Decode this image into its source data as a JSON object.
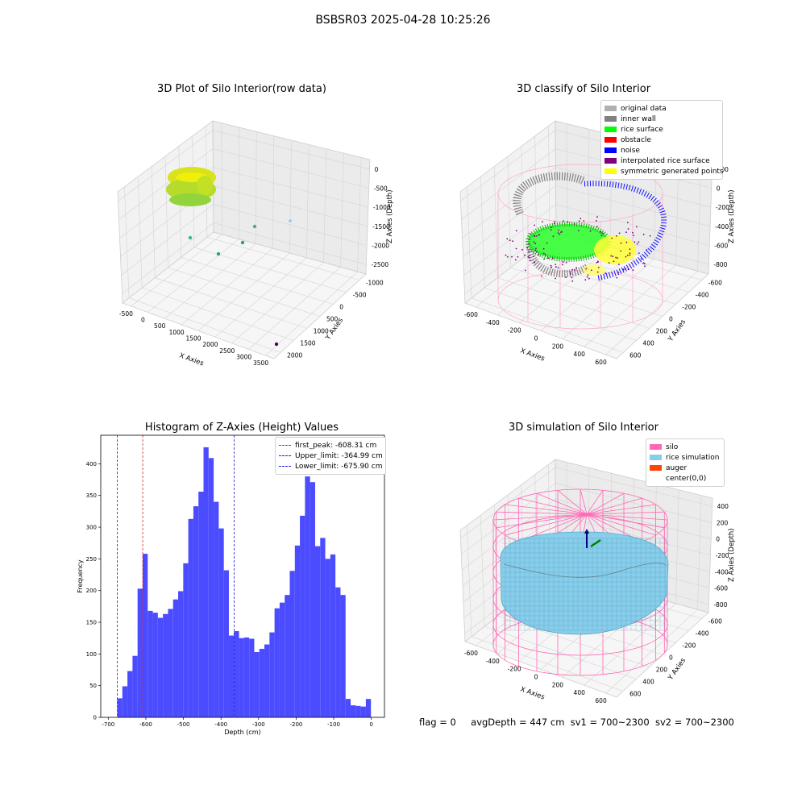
{
  "suptitle": "BSBSR03 2025-04-28 10:25:26",
  "footer": {
    "flag": "flag = 0",
    "avg_depth": "avgDepth = 447 cm",
    "sv1": "sv1 = 700~2300",
    "sv2": "sv2 = 700~2300"
  },
  "colors": {
    "hist_bar": "#4b4bff",
    "first_peak_line": "#d62728",
    "limit_lines": "#1f1fd6",
    "silo": "#ff69b4",
    "rice": "#87ceeb",
    "auger": "#ff4500",
    "rice_surface": "#00ff00",
    "noise": "#0000ff",
    "inner_wall": "#808080",
    "symmetric": "#ffff00",
    "interpolated": "#800080"
  },
  "chart_data": [
    {
      "type": "scatter3d",
      "title": "3D Plot of Silo Interior(row data)",
      "xlabel": "X Axies",
      "ylabel": "Y Axies",
      "zlabel": "Z Axies (Depth)",
      "x_ticks": [
        "-500",
        "0",
        "500",
        "1000",
        "1500",
        "2000",
        "2500",
        "3000",
        "3500"
      ],
      "y_ticks": [
        "-1000",
        "-500",
        "0",
        "500",
        "1000",
        "1500",
        "2000"
      ],
      "z_ticks": [
        "0",
        "-500",
        "-1000",
        "-1500",
        "-2000",
        "-2500"
      ],
      "outlier_points_desc": [
        "green",
        "teal",
        "teal",
        "teal",
        "lightblue",
        "purple"
      ]
    },
    {
      "type": "scatter3d",
      "title": "3D classify of Silo Interior",
      "xlabel": "X Axies",
      "ylabel": "Y Axies",
      "zlabel": "Z Axies (Depth)",
      "x_ticks": [
        "-600",
        "-400",
        "-200",
        "0",
        "200",
        "400",
        "600"
      ],
      "y_ticks": [
        "-600",
        "-400",
        "-200",
        "0",
        "200",
        "400",
        "600"
      ],
      "z_ticks": [
        "200",
        "0",
        "-200",
        "-400",
        "-600",
        "-800"
      ],
      "z_top_tick": "00",
      "legend": [
        {
          "label": "original data",
          "color": "#b0b0b0"
        },
        {
          "label": "inner wall",
          "color": "#808080"
        },
        {
          "label": "rice surface",
          "color": "#00ff00"
        },
        {
          "label": "obstacle",
          "color": "#ff0000"
        },
        {
          "label": "noise",
          "color": "#0000ff"
        },
        {
          "label": "interpolated rice surface",
          "color": "#800080"
        },
        {
          "label": "symmetric generated points",
          "color": "#ffff00"
        }
      ]
    },
    {
      "type": "bar",
      "title": "Histogram of Z-Axies (Height) Values",
      "xlabel": "Depth (cm)",
      "ylabel": "Frequency",
      "xlim": [
        -720,
        35
      ],
      "ylim": [
        0,
        445
      ],
      "x_ticks": [
        -700,
        -600,
        -500,
        -400,
        -300,
        -200,
        -100,
        0
      ],
      "y_ticks": [
        0,
        50,
        100,
        150,
        200,
        250,
        300,
        350,
        400
      ],
      "bin_start": -676,
      "bin_width": 13.5,
      "values": [
        30,
        49,
        73,
        97,
        203,
        258,
        168,
        165,
        157,
        163,
        171,
        186,
        199,
        243,
        313,
        333,
        356,
        426,
        409,
        340,
        298,
        232,
        129,
        136,
        125,
        126,
        124,
        103,
        108,
        115,
        134,
        172,
        181,
        193,
        231,
        271,
        318,
        380,
        371,
        270,
        283,
        250,
        257,
        205,
        193,
        29,
        19,
        18,
        17,
        29
      ],
      "vlines": [
        {
          "label": "first_peak: -608.31 cm",
          "x": -608.31,
          "color": "#d62728"
        },
        {
          "label": "Upper_limit: -364.99 cm",
          "x": -364.99,
          "color": "#1f1fd6"
        },
        {
          "label": "Lower_limit: -675.90 cm",
          "x": -675.9,
          "color": "#1f1fd6"
        }
      ]
    },
    {
      "type": "surface3d",
      "title": "3D simulation of Silo Interior",
      "xlabel": "X Axies",
      "ylabel": "Y Axies",
      "zlabel": "Z Axies (Depth)",
      "x_ticks": [
        "-600",
        "-400",
        "-200",
        "0",
        "200",
        "400",
        "600"
      ],
      "y_ticks": [
        "-600",
        "-400",
        "-200",
        "0",
        "200",
        "400",
        "600"
      ],
      "z_ticks": [
        "400",
        "200",
        "0",
        "-200",
        "-400",
        "-600",
        "-800"
      ],
      "legend": [
        {
          "label": "silo",
          "color": "#ff69b4"
        },
        {
          "label": "rice simulation",
          "color": "#87ceeb"
        },
        {
          "label": "auger",
          "color": "#ff4500"
        },
        {
          "label": "center(0,0)",
          "color": ""
        }
      ]
    }
  ]
}
